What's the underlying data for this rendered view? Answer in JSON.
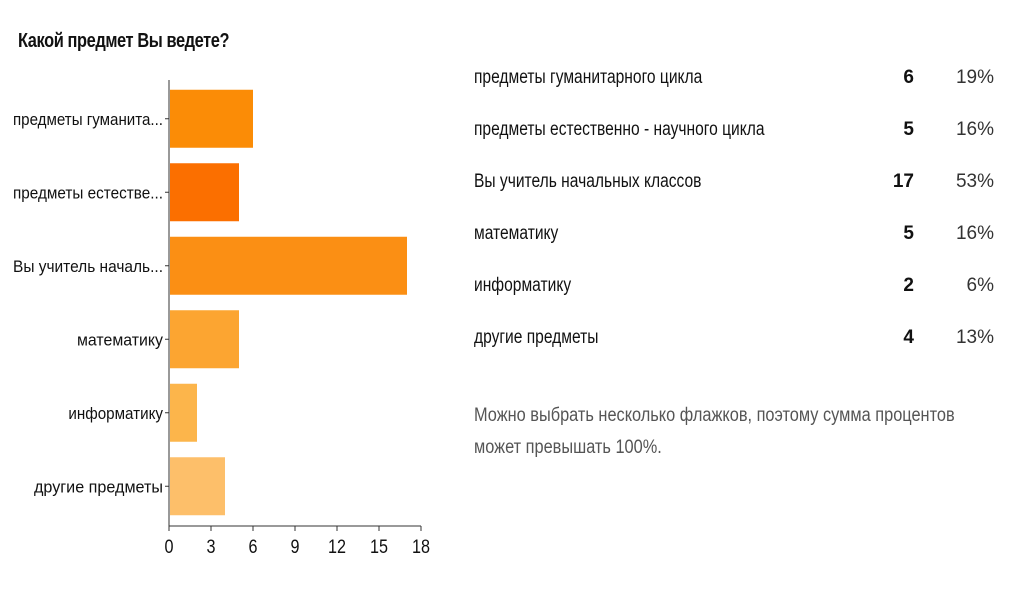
{
  "question": "Какой предмет Вы ведете?",
  "chart_data": {
    "type": "bar",
    "orientation": "horizontal",
    "categories": [
      "предметы гуманита...",
      "предметы естестве...",
      "Вы учитель началь...",
      "математику",
      "информатику",
      "другие предметы"
    ],
    "values": [
      6,
      5,
      17,
      5,
      2,
      4
    ],
    "colors": [
      "#fb8c06",
      "#fb6f00",
      "#fb8f14",
      "#fca531",
      "#fcb54b",
      "#fdbf6a"
    ],
    "xlim": [
      0,
      18
    ],
    "xticks": [
      "0",
      "3",
      "6",
      "9",
      "12",
      "15",
      "18"
    ],
    "grid": false,
    "legend": "none"
  },
  "summary": {
    "rows": [
      {
        "label": "предметы гуманитарного цикла",
        "count": "6",
        "percent": "19%"
      },
      {
        "label": "предметы естественно - научного цикла",
        "count": "5",
        "percent": "16%"
      },
      {
        "label": "Вы учитель начальных классов",
        "count": "17",
        "percent": "53%"
      },
      {
        "label": "математику",
        "count": "5",
        "percent": "16%"
      },
      {
        "label": "информатику",
        "count": "2",
        "percent": "6%"
      },
      {
        "label": "другие предметы",
        "count": "4",
        "percent": "13%"
      }
    ],
    "note": "Можно выбрать несколько флажков, поэтому сумма процентов может превышать 100%."
  }
}
